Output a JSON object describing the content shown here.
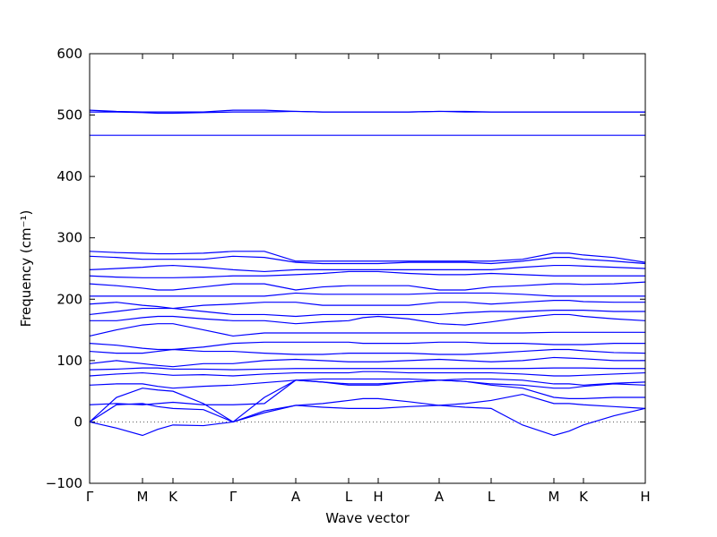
{
  "chart_data": {
    "type": "line",
    "xlabel": "Wave vector",
    "ylabel": "Frequency (cm⁻¹)",
    "x": [
      0,
      0.3,
      0.59,
      0.76,
      0.93,
      1.27,
      1.6,
      1.95,
      2.3,
      2.6,
      2.89,
      3.05,
      3.22,
      3.56,
      3.9,
      4.19,
      4.48,
      4.83,
      5.18,
      5.35,
      5.51,
      5.85,
      6.2
    ],
    "xlim": [
      0,
      6.2
    ],
    "xticks": [
      {
        "value": 0,
        "label": "Γ"
      },
      {
        "value": 0.59,
        "label": "M"
      },
      {
        "value": 0.93,
        "label": "K"
      },
      {
        "value": 1.6,
        "label": "Γ"
      },
      {
        "value": 2.3,
        "label": "A"
      },
      {
        "value": 2.89,
        "label": "L"
      },
      {
        "value": 3.22,
        "label": "H"
      },
      {
        "value": 3.9,
        "label": "A"
      },
      {
        "value": 4.48,
        "label": "L"
      },
      {
        "value": 5.18,
        "label": "M"
      },
      {
        "value": 5.51,
        "label": "K"
      },
      {
        "value": 6.2,
        "label": "H"
      }
    ],
    "ylim": [
      -100,
      600
    ],
    "yticks": [
      {
        "value": -100,
        "label": "−100"
      },
      0,
      100,
      200,
      300,
      400,
      500,
      600
    ],
    "hline": 0,
    "series": [
      {
        "color": "#0000ff",
        "values": [
          0,
          -10,
          -22,
          -12,
          -5,
          -6,
          0,
          15,
          27,
          24,
          22,
          22,
          22,
          25,
          27,
          24,
          22,
          -5,
          -22,
          -15,
          -5,
          10,
          22
        ]
      },
      {
        "color": "#0000ff",
        "values": [
          0,
          28,
          30,
          25,
          22,
          20,
          0,
          18,
          27,
          30,
          35,
          38,
          38,
          33,
          27,
          30,
          35,
          45,
          30,
          30,
          28,
          25,
          22
        ]
      },
      {
        "color": "#0000ff",
        "values": [
          0,
          40,
          55,
          52,
          50,
          30,
          0,
          40,
          68,
          65,
          60,
          60,
          60,
          65,
          68,
          66,
          60,
          55,
          40,
          38,
          38,
          40,
          40
        ]
      },
      {
        "color": "#0000ff",
        "values": [
          28,
          30,
          28,
          30,
          32,
          28,
          28,
          30,
          68,
          65,
          62,
          62,
          62,
          65,
          68,
          66,
          62,
          60,
          55,
          55,
          58,
          62,
          60
        ]
      },
      {
        "color": "#0000ff",
        "values": [
          60,
          62,
          62,
          58,
          55,
          58,
          60,
          64,
          68,
          70,
          70,
          70,
          70,
          70,
          68,
          70,
          70,
          68,
          62,
          62,
          60,
          63,
          65
        ]
      },
      {
        "color": "#0000ff",
        "values": [
          75,
          78,
          80,
          78,
          76,
          77,
          75,
          78,
          80,
          80,
          80,
          82,
          82,
          80,
          80,
          80,
          80,
          78,
          75,
          75,
          76,
          78,
          80
        ]
      },
      {
        "color": "#0000ff",
        "values": [
          85,
          86,
          88,
          88,
          86,
          86,
          85,
          86,
          87,
          87,
          87,
          87,
          87,
          87,
          87,
          87,
          87,
          87,
          88,
          88,
          88,
          87,
          87
        ]
      },
      {
        "color": "#0000ff",
        "values": [
          95,
          100,
          95,
          92,
          90,
          95,
          95,
          100,
          102,
          100,
          98,
          98,
          98,
          100,
          102,
          100,
          98,
          100,
          105,
          104,
          103,
          100,
          100
        ]
      },
      {
        "color": "#0000ff",
        "values": [
          115,
          112,
          112,
          115,
          118,
          115,
          115,
          112,
          110,
          110,
          112,
          112,
          112,
          112,
          110,
          110,
          112,
          115,
          118,
          118,
          116,
          113,
          112
        ]
      },
      {
        "color": "#0000ff",
        "values": [
          128,
          125,
          120,
          118,
          118,
          122,
          128,
          130,
          130,
          130,
          130,
          128,
          128,
          128,
          130,
          130,
          128,
          128,
          126,
          126,
          126,
          128,
          128
        ]
      },
      {
        "color": "#0000ff",
        "values": [
          140,
          150,
          158,
          160,
          160,
          150,
          140,
          145,
          145,
          145,
          145,
          145,
          145,
          145,
          145,
          145,
          145,
          145,
          146,
          146,
          146,
          146,
          146
        ]
      },
      {
        "color": "#0000ff",
        "values": [
          165,
          165,
          170,
          172,
          172,
          168,
          165,
          165,
          160,
          163,
          165,
          170,
          172,
          168,
          160,
          158,
          163,
          170,
          175,
          175,
          172,
          168,
          165
        ]
      },
      {
        "color": "#0000ff",
        "values": [
          175,
          180,
          185,
          185,
          185,
          180,
          175,
          175,
          172,
          175,
          175,
          175,
          175,
          175,
          175,
          178,
          180,
          180,
          182,
          182,
          182,
          180,
          180
        ]
      },
      {
        "color": "#0000ff",
        "values": [
          192,
          195,
          190,
          188,
          185,
          190,
          192,
          195,
          195,
          190,
          190,
          190,
          190,
          190,
          195,
          195,
          192,
          195,
          198,
          198,
          196,
          195,
          195
        ]
      },
      {
        "color": "#0000ff",
        "values": [
          205,
          205,
          205,
          205,
          205,
          205,
          205,
          205,
          210,
          208,
          208,
          208,
          208,
          208,
          210,
          210,
          210,
          208,
          205,
          205,
          205,
          205,
          205
        ]
      },
      {
        "color": "#0000ff",
        "values": [
          225,
          222,
          218,
          215,
          215,
          220,
          225,
          225,
          215,
          220,
          222,
          222,
          222,
          222,
          215,
          215,
          220,
          222,
          225,
          225,
          224,
          225,
          228
        ]
      },
      {
        "color": "#0000ff",
        "values": [
          238,
          236,
          235,
          235,
          235,
          236,
          238,
          238,
          240,
          242,
          245,
          245,
          245,
          242,
          240,
          240,
          242,
          240,
          238,
          238,
          238,
          238,
          238
        ]
      },
      {
        "color": "#0000ff",
        "values": [
          248,
          250,
          252,
          254,
          255,
          252,
          248,
          245,
          248,
          248,
          248,
          248,
          248,
          248,
          248,
          248,
          248,
          252,
          255,
          255,
          254,
          252,
          250
        ]
      },
      {
        "color": "#0000ff",
        "values": [
          270,
          268,
          265,
          265,
          265,
          265,
          270,
          268,
          260,
          258,
          258,
          258,
          258,
          260,
          260,
          260,
          258,
          262,
          268,
          268,
          265,
          262,
          258
        ]
      },
      {
        "color": "#0000ff",
        "values": [
          278,
          276,
          275,
          274,
          274,
          275,
          278,
          278,
          262,
          262,
          262,
          262,
          262,
          262,
          262,
          262,
          262,
          265,
          275,
          275,
          272,
          268,
          260
        ]
      },
      {
        "color": "#0000ff",
        "values": [
          467,
          467,
          467,
          467,
          467,
          467,
          467,
          467,
          467,
          467,
          467,
          467,
          467,
          467,
          467,
          467,
          467,
          467,
          467,
          467,
          467,
          467,
          467
        ]
      },
      {
        "color": "#0000ff",
        "values": [
          508,
          506,
          505,
          505,
          505,
          505,
          508,
          508,
          506,
          505,
          505,
          505,
          505,
          505,
          506,
          506,
          505,
          505,
          505,
          505,
          505,
          505,
          505
        ]
      },
      {
        "color": "#0000ff",
        "values": [
          505,
          505,
          504,
          503,
          503,
          504,
          505,
          505,
          506,
          505,
          505,
          505,
          505,
          505,
          506,
          505,
          505,
          505,
          505,
          505,
          505,
          505,
          505
        ]
      }
    ]
  }
}
